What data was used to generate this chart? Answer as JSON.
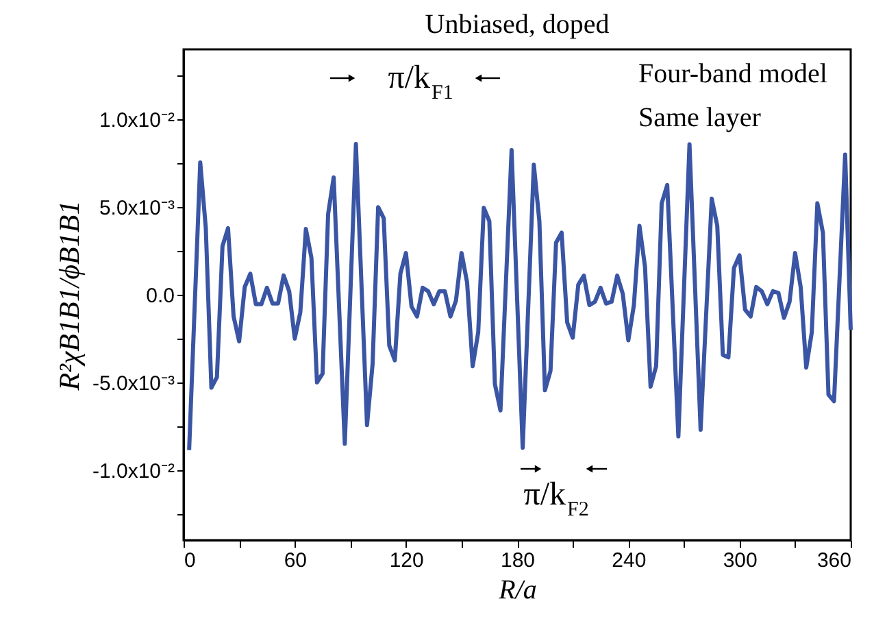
{
  "chart_data": {
    "type": "line",
    "title": "Unbiased, doped",
    "xlabel": "R/a",
    "ylabel": "R²χB1B1/ϕB1B1",
    "x": [
      3,
      9,
      12,
      15,
      18,
      21,
      24,
      27,
      30,
      33,
      36,
      39,
      42,
      45,
      48,
      51,
      54,
      57,
      60,
      63,
      66,
      69,
      72,
      75,
      78,
      81,
      87,
      93,
      99,
      102,
      105,
      108,
      111,
      114,
      117,
      120,
      123,
      126,
      129,
      132,
      135,
      138,
      141,
      144,
      147,
      150,
      153,
      156,
      159,
      162,
      165,
      168,
      171,
      177,
      183,
      189,
      192,
      195,
      198,
      201,
      204,
      207,
      210,
      213,
      216,
      219,
      222,
      225,
      228,
      231,
      234,
      237,
      240,
      243,
      246,
      249,
      252,
      255,
      258,
      261,
      267,
      273,
      279,
      285,
      288,
      291,
      294,
      297,
      300,
      303,
      306,
      309,
      312,
      315,
      318,
      321,
      324,
      327,
      330,
      333,
      336,
      339,
      342,
      345,
      348,
      351,
      357,
      360
    ],
    "series": [
      {
        "color": "#3a55a4",
        "values": [
          -0.00886,
          0.00755,
          0.0038,
          -0.0053,
          -0.0047,
          0.00277,
          0.0038,
          -0.00124,
          -0.00266,
          0.00044,
          0.0012,
          -0.00054,
          -0.00054,
          0.0004,
          -0.0005,
          -0.0005,
          0.0011,
          0.0002,
          -0.0025,
          -0.001,
          0.00375,
          0.0021,
          -0.005,
          -0.0045,
          0.0046,
          0.0067,
          -0.0085,
          0.0086,
          -0.00744,
          -0.00395,
          0.005,
          0.00437,
          -0.0029,
          -0.00374,
          0.0012,
          0.00238,
          -0.00067,
          -0.00124,
          0.0004,
          0.0002,
          -0.00054,
          0.0002,
          0.0002,
          -0.00124,
          -0.00033,
          0.00238,
          0.0007,
          -0.00408,
          -0.00214,
          0.00496,
          0.0042,
          -0.0051,
          -0.0066,
          0.00825,
          -0.00873,
          0.00742,
          0.0042,
          -0.00545,
          -0.00434,
          0.00297,
          0.00354,
          -0.00157,
          -0.00245,
          0.00057,
          0.00109,
          -0.00059,
          -0.0004,
          0.0004,
          -0.0005,
          -0.0004,
          0.00109,
          5e-05,
          -0.0026,
          -0.00059,
          0.00393,
          0.0016,
          -0.00524,
          -0.00408,
          0.00522,
          0.00626,
          -0.00808,
          0.00858,
          -0.0077,
          0.00548,
          0.00393,
          -0.00343,
          -0.00357,
          0.00153,
          0.00225,
          -0.00085,
          -0.00124,
          0.00044,
          0.0002,
          -0.00054,
          0.0002,
          0.0001,
          -0.00132,
          -0.0004,
          0.00238,
          0.00044,
          -0.00416,
          -0.00214,
          0.00522,
          0.00354,
          -0.0057,
          -0.00607,
          0.008,
          -0.002
        ]
      }
    ],
    "xlim": [
      0,
      360
    ],
    "xticks": [
      0,
      {
        "value": 30,
        "label": null
      },
      60,
      {
        "value": 90,
        "label": null
      },
      120,
      {
        "value": 150,
        "label": null
      },
      180,
      {
        "value": 210,
        "label": null
      },
      240,
      {
        "value": 270,
        "label": null
      },
      300,
      {
        "value": 330,
        "label": null
      },
      360
    ],
    "ylim": [
      -0.014,
      0.014
    ],
    "yticks": [
      {
        "value": -0.0125,
        "label": null
      },
      {
        "value": -0.01,
        "label": "-1.0x10⁻²"
      },
      {
        "value": -0.0075,
        "label": null
      },
      {
        "value": -0.005,
        "label": "-5.0x10⁻³"
      },
      {
        "value": -0.0025,
        "label": null
      },
      {
        "value": 0,
        "label": "0.0"
      },
      {
        "value": 0.0025,
        "label": null
      },
      {
        "value": 0.005,
        "label": "5.0x10⁻³"
      },
      {
        "value": 0.0075,
        "label": null
      },
      {
        "value": 0.01,
        "label": "1.0x10⁻²"
      },
      {
        "value": 0.0125,
        "label": null
      }
    ],
    "annotations": [
      "π/k$_{F1}$",
      "π/k$_{F2}$",
      "Four-band model",
      "Same layer"
    ],
    "grid": false,
    "marker": "none",
    "line_style": "solid"
  }
}
